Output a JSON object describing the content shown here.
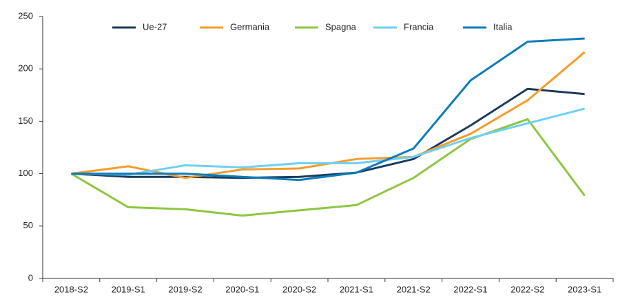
{
  "chart_data": {
    "type": "line",
    "categories": [
      "2018-S2",
      "2019-S1",
      "2019-S2",
      "2020-S1",
      "2020-S2",
      "2021-S1",
      "2021-S2",
      "2022-S1",
      "2022-S2",
      "2023-S1"
    ],
    "series": [
      {
        "name": "Ue-27",
        "color": "#1b3a5a",
        "values": [
          100,
          97,
          97,
          96,
          97,
          101,
          114,
          146,
          181,
          176
        ]
      },
      {
        "name": "Germania",
        "color": "#f39c2b",
        "values": [
          100,
          107,
          96,
          104,
          105,
          114,
          116,
          138,
          170,
          216
        ]
      },
      {
        "name": "Spagna",
        "color": "#8dc63f",
        "values": [
          100,
          68,
          66,
          60,
          65,
          70,
          96,
          133,
          152,
          79
        ]
      },
      {
        "name": "Francia",
        "color": "#6ccff6",
        "values": [
          100,
          99,
          108,
          106,
          110,
          110,
          116,
          134,
          148,
          162
        ]
      },
      {
        "name": "Italia",
        "color": "#0a7cba",
        "values": [
          100,
          100,
          100,
          97,
          94,
          101,
          124,
          189,
          226,
          229
        ]
      }
    ],
    "ylim": [
      0,
      250
    ],
    "yticks": [
      0,
      50,
      100,
      150,
      200,
      250
    ],
    "grid": false,
    "legend": "top"
  }
}
